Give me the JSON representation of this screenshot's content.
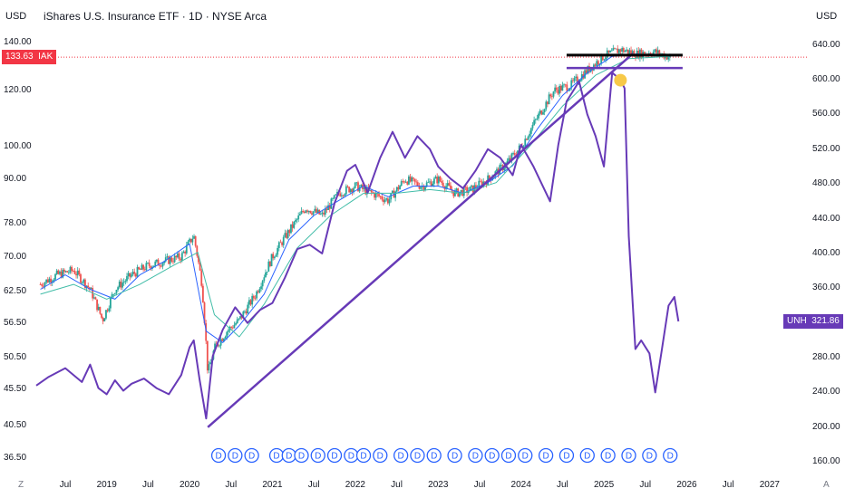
{
  "header": {
    "currency_left": "USD",
    "currency_right": "USD",
    "title": "iShares U.S. Insurance ETF · 1D · NYSE Arca"
  },
  "corner_left": "Z",
  "corner_right": "A",
  "colors": {
    "up": "#26a69a",
    "down": "#ef5350",
    "ma_fast": "#2962ff",
    "ma_slow": "#42bda8",
    "unh": "#673ab7",
    "trend": "#673ab7",
    "resistance": "#000000",
    "price_badge": "#f23645",
    "event": "#2962ff",
    "pin": "#f7c948"
  },
  "chart_data": {
    "type": "line",
    "title": "iShares U.S. Insurance ETF · 1D · NYSE Arca",
    "x_tick_labels": [
      "Jul",
      "2019",
      "Jul",
      "2020",
      "Jul",
      "2021",
      "Jul",
      "2022",
      "Jul",
      "2023",
      "Jul",
      "2024",
      "Jul",
      "2025",
      "Jul",
      "2026",
      "Jul",
      "2027"
    ],
    "x_tick_dates": [
      2018.5,
      2019.0,
      2019.5,
      2020.0,
      2020.5,
      2021.0,
      2021.5,
      2022.0,
      2022.5,
      2023.0,
      2023.5,
      2024.0,
      2024.5,
      2025.0,
      2025.5,
      2026.0,
      2026.5,
      2027.0
    ],
    "x_range": [
      2018.15,
      2027.45
    ],
    "left_axis": {
      "currency": "USD",
      "scale": "log",
      "ticks": [
        140.0,
        120.0,
        100.0,
        90.0,
        78.0,
        70.0,
        62.5,
        56.5,
        50.5,
        45.5,
        40.5,
        36.5
      ],
      "tick_labels": [
        "140.00",
        "120.00",
        "100.00",
        "90.00",
        "78.00",
        "70.00",
        "62.50",
        "56.50",
        "50.50",
        "45.50",
        "40.50",
        "36.50"
      ],
      "range": [
        35.5,
        143.0
      ]
    },
    "right_axis": {
      "currency": "USD",
      "ticks": [
        640,
        600,
        560,
        520,
        480,
        440,
        400,
        360,
        320,
        280,
        240,
        200,
        160
      ],
      "tick_labels": [
        "640.00",
        "600.00",
        "560.00",
        "520.00",
        "480.00",
        "440.00",
        "400.00",
        "360.00",
        "320.00",
        "280.00",
        "240.00",
        "200.00",
        "160.00"
      ],
      "range": [
        155,
        650
      ]
    },
    "series": [
      {
        "name": "IAK",
        "kind": "candles",
        "axis": "left",
        "last_value": "133.63",
        "x": [
          2018.2,
          2018.4,
          2018.6,
          2018.8,
          2018.95,
          2019.1,
          2019.3,
          2019.5,
          2019.7,
          2019.9,
          2020.05,
          2020.15,
          2020.22,
          2020.3,
          2020.45,
          2020.6,
          2020.8,
          2021.0,
          2021.2,
          2021.4,
          2021.6,
          2021.8,
          2022.0,
          2022.2,
          2022.4,
          2022.6,
          2022.8,
          2023.0,
          2023.2,
          2023.4,
          2023.6,
          2023.8,
          2024.0,
          2024.2,
          2024.4,
          2024.6,
          2024.8,
          2025.0,
          2025.2,
          2025.4,
          2025.6,
          2025.8
        ],
        "values": [
          64,
          66,
          67,
          63,
          57,
          63,
          66,
          68,
          69,
          70,
          75,
          64,
          48,
          52,
          55,
          57,
          62,
          70,
          76,
          82,
          80,
          86,
          88,
          86,
          84,
          90,
          88,
          90,
          86,
          87,
          90,
          94,
          100,
          110,
          120,
          122,
          128,
          134,
          137,
          135,
          136,
          133.63
        ]
      },
      {
        "name": "UNH",
        "kind": "line",
        "axis": "right",
        "last_value": "321.86",
        "x": [
          2018.15,
          2018.3,
          2018.5,
          2018.7,
          2018.8,
          2018.9,
          2019.0,
          2019.1,
          2019.2,
          2019.3,
          2019.45,
          2019.6,
          2019.75,
          2019.9,
          2020.0,
          2020.05,
          2020.12,
          2020.2,
          2020.28,
          2020.4,
          2020.55,
          2020.7,
          2020.85,
          2021.0,
          2021.15,
          2021.3,
          2021.45,
          2021.6,
          2021.75,
          2021.9,
          2022.0,
          2022.15,
          2022.3,
          2022.45,
          2022.6,
          2022.75,
          2022.9,
          2023.0,
          2023.15,
          2023.3,
          2023.45,
          2023.6,
          2023.75,
          2023.9,
          2024.0,
          2024.15,
          2024.25,
          2024.35,
          2024.45,
          2024.55,
          2024.7,
          2024.8,
          2024.9,
          2025.0,
          2025.1,
          2025.2,
          2025.25,
          2025.3,
          2025.38,
          2025.45,
          2025.55,
          2025.62,
          2025.7,
          2025.78,
          2025.85,
          2025.9
        ],
        "values": [
          248,
          258,
          268,
          252,
          272,
          245,
          238,
          254,
          242,
          250,
          256,
          245,
          238,
          260,
          292,
          300,
          255,
          210,
          282,
          312,
          338,
          320,
          335,
          343,
          372,
          405,
          410,
          400,
          458,
          495,
          502,
          470,
          510,
          540,
          510,
          535,
          520,
          500,
          486,
          475,
          495,
          520,
          510,
          490,
          525,
          500,
          480,
          460,
          525,
          575,
          598,
          560,
          535,
          500,
          608,
          600,
          590,
          420,
          290,
          300,
          285,
          240,
          290,
          340,
          350,
          321.86
        ]
      },
      {
        "name": "IAK MA fast",
        "kind": "line",
        "axis": "left",
        "x": [
          2018.2,
          2018.5,
          2018.8,
          2019.1,
          2019.4,
          2019.7,
          2020.0,
          2020.2,
          2020.4,
          2020.6,
          2020.9,
          2021.2,
          2021.5,
          2021.8,
          2022.1,
          2022.4,
          2022.7,
          2023.0,
          2023.3,
          2023.6,
          2023.9,
          2024.2,
          2024.5,
          2024.8,
          2025.1,
          2025.4,
          2025.8
        ],
        "values": [
          63,
          66,
          63,
          61,
          66,
          69,
          73,
          55,
          53,
          56,
          62,
          74,
          80,
          84,
          88,
          85,
          88,
          88,
          86,
          89,
          94,
          106,
          118,
          127,
          134,
          135,
          134
        ]
      },
      {
        "name": "IAK MA slow",
        "kind": "line",
        "axis": "left",
        "x": [
          2018.2,
          2018.6,
          2019.0,
          2019.4,
          2019.8,
          2020.1,
          2020.3,
          2020.6,
          2020.9,
          2021.3,
          2021.7,
          2022.1,
          2022.5,
          2022.9,
          2023.3,
          2023.7,
          2024.1,
          2024.5,
          2024.9,
          2025.3,
          2025.8
        ],
        "values": [
          62,
          64,
          61,
          64,
          68,
          71,
          58,
          54,
          60,
          72,
          80,
          86,
          86,
          87,
          86,
          89,
          100,
          114,
          126,
          133,
          134
        ]
      }
    ],
    "drawings": {
      "trend_line": {
        "axis": "right",
        "from": [
          2020.22,
          200
        ],
        "to": [
          2025.35,
          630
        ]
      },
      "resistance_line": {
        "axis": "left",
        "x": [
          2024.55,
          2025.95
        ],
        "value": 134.5
      },
      "support_line": {
        "axis": "left",
        "x": [
          2024.55,
          2025.95
        ],
        "value": 129.0
      },
      "pin": {
        "axis": "left",
        "x": 2025.2,
        "value": 124
      }
    },
    "event_markers": {
      "label": "D",
      "x": [
        2020.35,
        2020.55,
        2020.75,
        2021.05,
        2021.2,
        2021.35,
        2021.55,
        2021.75,
        2021.95,
        2022.1,
        2022.3,
        2022.55,
        2022.75,
        2022.95,
        2023.2,
        2023.45,
        2023.65,
        2023.85,
        2024.05,
        2024.3,
        2024.55,
        2024.8,
        2025.05,
        2025.3,
        2025.55,
        2025.8
      ]
    },
    "grid": false,
    "legend": "none"
  }
}
